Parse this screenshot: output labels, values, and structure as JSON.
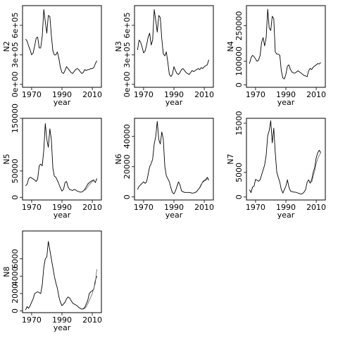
{
  "figure": {
    "line_color": "#000000",
    "alt_line_color": "#666666",
    "background": "#ffffff"
  },
  "chart_data": [
    {
      "type": "line",
      "panel": "N2",
      "xlabel": "year",
      "ylabel": "N2",
      "xlim": [
        1964,
        2016
      ],
      "ylim": [
        -30000,
        800000
      ],
      "x_ticks": [
        1970,
        1990,
        2010
      ],
      "x_tick_labels": [
        "1970",
        "1990",
        "2010"
      ],
      "y_ticks": [
        0,
        300000,
        600000
      ],
      "y_tick_labels": [
        "0e+00",
        "3e+05",
        "6e+05"
      ],
      "series": [
        {
          "x": [
            1966,
            1967,
            1968,
            1969,
            1970,
            1971,
            1972,
            1973,
            1974,
            1975,
            1976,
            1977,
            1978,
            1979,
            1980,
            1981,
            1982,
            1983,
            1984,
            1985,
            1986,
            1987,
            1988,
            1989,
            1990,
            1991,
            1992,
            1993,
            1994,
            1995,
            1996,
            1997,
            1998,
            1999,
            2000,
            2001,
            2002,
            2003,
            2004,
            2005,
            2006,
            2007,
            2008,
            2009,
            2010,
            2011,
            2012,
            2013
          ],
          "values": [
            460000,
            440000,
            390000,
            350000,
            300000,
            320000,
            390000,
            470000,
            480000,
            370000,
            370000,
            490000,
            760000,
            640000,
            520000,
            700000,
            690000,
            500000,
            340000,
            300000,
            300000,
            330000,
            260000,
            170000,
            120000,
            110000,
            140000,
            180000,
            160000,
            140000,
            120000,
            110000,
            130000,
            150000,
            160000,
            150000,
            130000,
            110000,
            120000,
            150000,
            140000,
            150000,
            150000,
            160000,
            160000,
            170000,
            210000,
            240000
          ]
        }
      ]
    },
    {
      "type": "line",
      "panel": "N3",
      "xlabel": "year",
      "ylabel": "N3",
      "xlim": [
        1964,
        2016
      ],
      "ylim": [
        -30000,
        800000
      ],
      "x_ticks": [
        1970,
        1990,
        2010
      ],
      "x_tick_labels": [
        "1970",
        "1990",
        "2010"
      ],
      "y_ticks": [
        0,
        300000,
        600000
      ],
      "y_tick_labels": [
        "0e+00",
        "3e+05",
        "6e+05"
      ],
      "series": [
        {
          "x": [
            1966,
            1967,
            1968,
            1969,
            1970,
            1971,
            1972,
            1973,
            1974,
            1975,
            1976,
            1977,
            1978,
            1979,
            1980,
            1981,
            1982,
            1983,
            1984,
            1985,
            1986,
            1987,
            1988,
            1989,
            1990,
            1991,
            1992,
            1993,
            1994,
            1995,
            1996,
            1997,
            1998,
            1999,
            2000,
            2001,
            2002,
            2003,
            2004,
            2005,
            2006,
            2007,
            2008,
            2009,
            2010,
            2011,
            2012,
            2013
          ],
          "values": [
            350000,
            450000,
            430000,
            380000,
            320000,
            340000,
            400000,
            480000,
            520000,
            400000,
            450000,
            760000,
            650000,
            530000,
            700000,
            680000,
            460000,
            310000,
            290000,
            330000,
            220000,
            100000,
            80000,
            100000,
            180000,
            140000,
            110000,
            100000,
            120000,
            150000,
            160000,
            140000,
            120000,
            110000,
            100000,
            120000,
            140000,
            130000,
            140000,
            150000,
            160000,
            150000,
            170000,
            160000,
            180000,
            190000,
            200000,
            250000
          ]
        }
      ]
    },
    {
      "type": "line",
      "panel": "N4",
      "xlabel": "year",
      "ylabel": "N4",
      "xlim": [
        1964,
        2016
      ],
      "ylim": [
        -10000,
        335000
      ],
      "x_ticks": [
        1970,
        1990,
        2010
      ],
      "x_tick_labels": [
        "1970",
        "1990",
        "2010"
      ],
      "y_ticks": [
        0,
        100000,
        250000
      ],
      "y_tick_labels": [
        "0",
        "100000",
        "250000"
      ],
      "series": [
        {
          "x": [
            1966,
            1967,
            1968,
            1969,
            1970,
            1971,
            1972,
            1973,
            1974,
            1975,
            1976,
            1977,
            1978,
            1979,
            1980,
            1981,
            1982,
            1983,
            1984,
            1985,
            1986,
            1987,
            1988,
            1989,
            1990,
            1991,
            1992,
            1993,
            1994,
            1995,
            1996,
            1997,
            1998,
            1999,
            2000,
            2001,
            2002,
            2003,
            2004,
            2005,
            2006,
            2007,
            2008,
            2009,
            2010,
            2011,
            2012,
            2013
          ],
          "values": [
            90000,
            115000,
            125000,
            120000,
            110000,
            100000,
            105000,
            125000,
            180000,
            200000,
            165000,
            200000,
            320000,
            240000,
            230000,
            290000,
            280000,
            140000,
            130000,
            130000,
            125000,
            60000,
            30000,
            25000,
            45000,
            80000,
            85000,
            65000,
            55000,
            50000,
            50000,
            55000,
            60000,
            55000,
            50000,
            45000,
            40000,
            38000,
            35000,
            60000,
            70000,
            65000,
            75000,
            80000,
            85000,
            90000,
            88000,
            95000
          ]
        }
      ]
    },
    {
      "type": "line",
      "panel": "N5",
      "xlabel": "year",
      "ylabel": "N5",
      "xlim": [
        1964,
        2016
      ],
      "ylim": [
        -5000,
        150000
      ],
      "x_ticks": [
        1970,
        1990,
        2010
      ],
      "x_tick_labels": [
        "1970",
        "1990",
        "2010"
      ],
      "y_ticks": [
        0,
        50000,
        150000
      ],
      "y_tick_labels": [
        "0",
        "50000",
        "150000"
      ],
      "series": [
        {
          "x": [
            1966,
            1967,
            1968,
            1969,
            1970,
            1971,
            1972,
            1973,
            1974,
            1975,
            1976,
            1977,
            1978,
            1979,
            1980,
            1981,
            1982,
            1983,
            1984,
            1985,
            1986,
            1987,
            1988,
            1989,
            1990,
            1991,
            1992,
            1993,
            1994,
            1995,
            1996,
            1997,
            1998,
            1999,
            2000,
            2001,
            2002,
            2003,
            2004,
            2005,
            2006,
            2007,
            2008,
            2009,
            2010,
            2011,
            2012,
            2013
          ],
          "values": [
            22000,
            25000,
            35000,
            38000,
            37000,
            35000,
            33000,
            30000,
            35000,
            60000,
            63000,
            60000,
            90000,
            140000,
            110000,
            95000,
            130000,
            110000,
            55000,
            40000,
            38000,
            32000,
            25000,
            18000,
            12000,
            15000,
            28000,
            30000,
            20000,
            15000,
            14000,
            13000,
            15000,
            14000,
            12000,
            11000,
            10000,
            10000,
            12000,
            15000,
            20000,
            25000,
            28000,
            30000,
            32000,
            33000,
            28000,
            36000
          ]
        },
        {
          "x": [
            2005,
            2006,
            2007,
            2008,
            2009,
            2010,
            2011,
            2012,
            2013
          ],
          "values": [
            13000,
            16000,
            20000,
            24000,
            27000,
            30000,
            31000,
            30000,
            33000
          ]
        }
      ]
    },
    {
      "type": "line",
      "panel": "N6",
      "xlabel": "year",
      "ylabel": "N6",
      "xlim": [
        1964,
        2016
      ],
      "ylim": [
        -2000,
        52000
      ],
      "x_ticks": [
        1970,
        1990,
        2010
      ],
      "x_tick_labels": [
        "1970",
        "1990",
        "2010"
      ],
      "y_ticks": [
        0,
        20000,
        40000
      ],
      "y_tick_labels": [
        "0",
        "20000",
        "40000"
      ],
      "series": [
        {
          "x": [
            1966,
            1967,
            1968,
            1969,
            1970,
            1971,
            1972,
            1973,
            1974,
            1975,
            1976,
            1977,
            1978,
            1979,
            1980,
            1981,
            1982,
            1983,
            1984,
            1985,
            1986,
            1987,
            1988,
            1989,
            1990,
            1991,
            1992,
            1993,
            1994,
            1995,
            1996,
            1997,
            1998,
            1999,
            2000,
            2001,
            2002,
            2003,
            2004,
            2005,
            2006,
            2007,
            2008,
            2009,
            2010,
            2011,
            2012,
            2013
          ],
          "values": [
            5000,
            7000,
            8000,
            9000,
            10000,
            9000,
            10000,
            15000,
            20000,
            22000,
            25000,
            35000,
            40000,
            50000,
            38000,
            35000,
            43000,
            38000,
            20000,
            14000,
            12000,
            10000,
            6000,
            3000,
            2000,
            4000,
            7000,
            10000,
            8000,
            4000,
            3500,
            3000,
            3000,
            3000,
            3000,
            2800,
            2500,
            2600,
            3000,
            3500,
            5000,
            6000,
            8000,
            10000,
            11000,
            11500,
            13000,
            11000
          ]
        },
        {
          "x": [
            2007,
            2008,
            2009,
            2010,
            2011,
            2012,
            2013
          ],
          "values": [
            6500,
            8500,
            9500,
            10500,
            11000,
            12000,
            12500
          ]
        }
      ]
    },
    {
      "type": "line",
      "panel": "N7",
      "xlabel": "year",
      "ylabel": "N7",
      "xlim": [
        1964,
        2016
      ],
      "ylim": [
        -600,
        16000
      ],
      "x_ticks": [
        1970,
        1990,
        2010
      ],
      "x_tick_labels": [
        "1970",
        "1990",
        "2010"
      ],
      "y_ticks": [
        0,
        5000,
        15000
      ],
      "y_tick_labels": [
        "0",
        "5000",
        "15000"
      ],
      "series": [
        {
          "x": [
            1966,
            1967,
            1968,
            1969,
            1970,
            1971,
            1972,
            1973,
            1974,
            1975,
            1976,
            1977,
            1978,
            1979,
            1980,
            1981,
            1982,
            1983,
            1984,
            1985,
            1986,
            1987,
            1988,
            1989,
            1990,
            1991,
            1992,
            1993,
            1994,
            1995,
            1996,
            1997,
            1998,
            1999,
            2000,
            2001,
            2002,
            2003,
            2004,
            2005,
            2006,
            2007,
            2008,
            2009,
            2010,
            2011,
            2012,
            2013
          ],
          "values": [
            1500,
            900,
            2000,
            2200,
            3600,
            3400,
            3200,
            3500,
            4500,
            5500,
            6500,
            8500,
            12500,
            13500,
            15500,
            11000,
            14000,
            9000,
            5000,
            4000,
            3000,
            1500,
            800,
            1500,
            2200,
            3500,
            2000,
            1200,
            1100,
            1000,
            1000,
            900,
            800,
            700,
            600,
            700,
            1000,
            1500,
            3000,
            3500,
            2800,
            3500,
            5000,
            6000,
            8000,
            9000,
            9500,
            9000
          ]
        },
        {
          "x": [
            2007,
            2008,
            2009,
            2010,
            2011,
            2012,
            2013
          ],
          "values": [
            3000,
            4200,
            5300,
            6800,
            7800,
            8500,
            9000
          ]
        }
      ]
    },
    {
      "type": "line",
      "panel": "N8",
      "xlabel": "year",
      "ylabel": "N8",
      "xlim": [
        1964,
        2016
      ],
      "ylim": [
        -200,
        9200
      ],
      "x_ticks": [
        1970,
        1990,
        2010
      ],
      "x_tick_labels": [
        "1970",
        "1990",
        "2010"
      ],
      "y_ticks": [
        0,
        2000,
        4000,
        6000
      ],
      "y_tick_labels": [
        "0",
        "2000",
        "4000",
        "6000"
      ],
      "series": [
        {
          "x": [
            1966,
            1967,
            1968,
            1969,
            1970,
            1971,
            1972,
            1973,
            1974,
            1975,
            1976,
            1977,
            1978,
            1979,
            1980,
            1981,
            1982,
            1983,
            1984,
            1985,
            1986,
            1987,
            1988,
            1989,
            1990,
            1991,
            1992,
            1993,
            1994,
            1995,
            1996,
            1997,
            1998,
            1999,
            2000,
            2001,
            2002,
            2003,
            2004,
            2005,
            2006,
            2007,
            2008,
            2009,
            2010,
            2011,
            2012,
            2013
          ],
          "values": [
            100,
            500,
            300,
            600,
            1000,
            1400,
            2000,
            2100,
            2200,
            2100,
            2000,
            3000,
            5000,
            6000,
            6200,
            8000,
            7000,
            6000,
            5000,
            4000,
            3200,
            2600,
            1600,
            1000,
            600,
            800,
            1000,
            1400,
            1600,
            1500,
            1200,
            900,
            800,
            700,
            600,
            400,
            300,
            200,
            250,
            400,
            800,
            1200,
            2000,
            2200,
            2300,
            2500,
            3500,
            4000
          ]
        },
        {
          "x": [
            2004,
            2005,
            2006,
            2007,
            2008,
            2009,
            2010,
            2011,
            2012,
            2013
          ],
          "values": [
            200,
            300,
            500,
            800,
            1200,
            1600,
            2000,
            2600,
            3200,
            4800
          ]
        }
      ]
    }
  ]
}
